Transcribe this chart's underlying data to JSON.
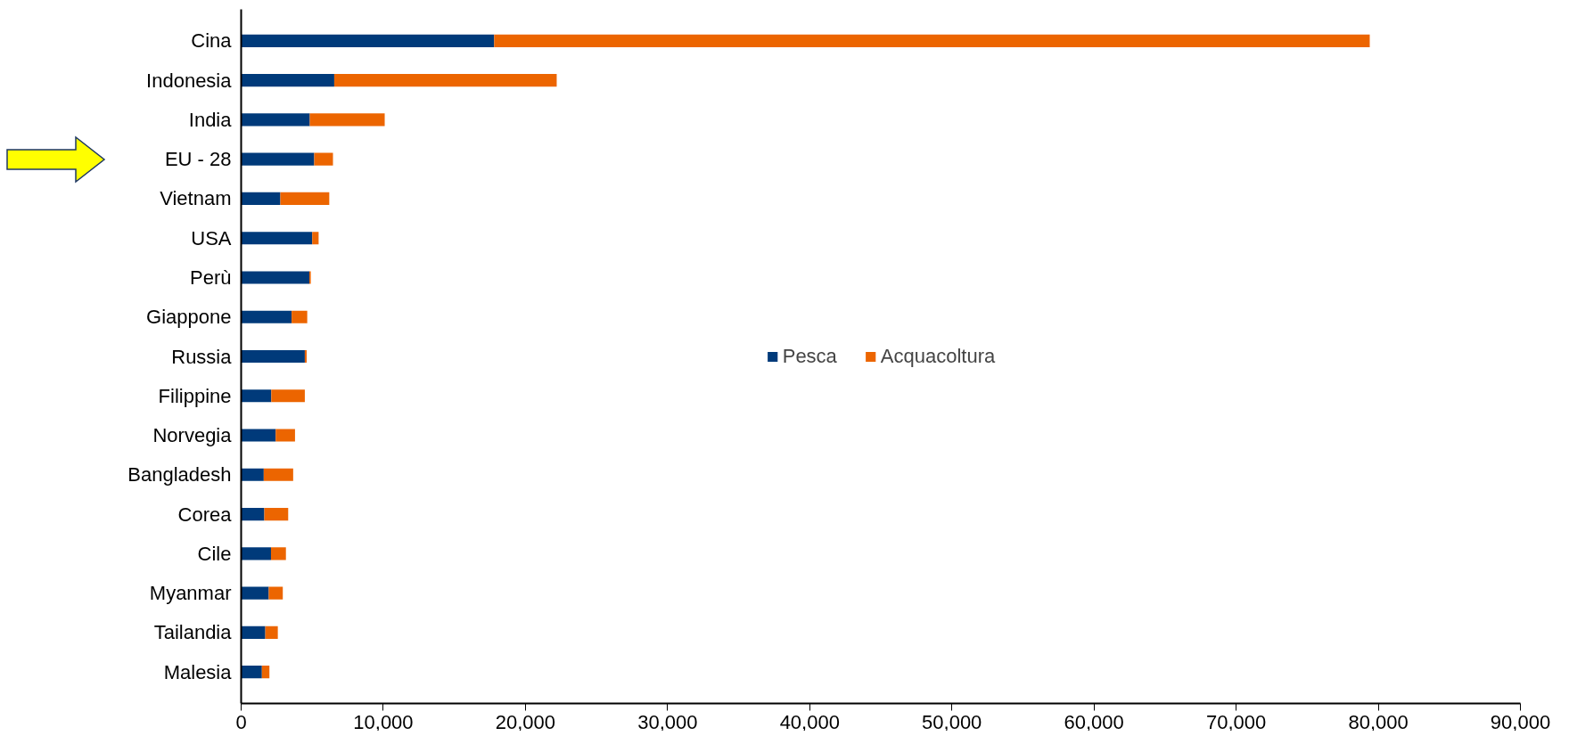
{
  "chart_data": {
    "type": "bar",
    "orientation": "horizontal",
    "stacked": true,
    "categories": [
      "Cina",
      "Indonesia",
      "India",
      "EU - 28",
      "Vietnam",
      "USA",
      "Perù",
      "Giappone",
      "Russia",
      "Filippine",
      "Norvegia",
      "Bangladesh",
      "Corea",
      "Cile",
      "Myanmar",
      "Tailandia",
      "Malesia"
    ],
    "series": [
      {
        "name": "Pesca",
        "color": "#003a7a",
        "values": [
          17800,
          6550,
          4830,
          5140,
          2760,
          5000,
          4800,
          3550,
          4480,
          2120,
          2430,
          1590,
          1630,
          2100,
          1940,
          1700,
          1460
        ]
      },
      {
        "name": "Acquacoltura",
        "color": "#ec6500",
        "values": [
          61600,
          15650,
          5270,
          1320,
          3440,
          450,
          100,
          1100,
          130,
          2360,
          1360,
          2070,
          1680,
          1050,
          990,
          880,
          530
        ]
      }
    ],
    "xlim": [
      0,
      90000
    ],
    "xticks": [
      {
        "value": 0,
        "label": "0"
      },
      {
        "value": 10000,
        "label": "10,000"
      },
      {
        "value": 20000,
        "label": "20,000"
      },
      {
        "value": 30000,
        "label": "30,000"
      },
      {
        "value": 40000,
        "label": "40,000"
      },
      {
        "value": 50000,
        "label": "50,000"
      },
      {
        "value": 60000,
        "label": "60,000"
      },
      {
        "value": 70000,
        "label": "70,000"
      },
      {
        "value": 80000,
        "label": "80,000"
      },
      {
        "value": 90000,
        "label": "90,000"
      }
    ],
    "grid": false,
    "legend": "center"
  }
}
